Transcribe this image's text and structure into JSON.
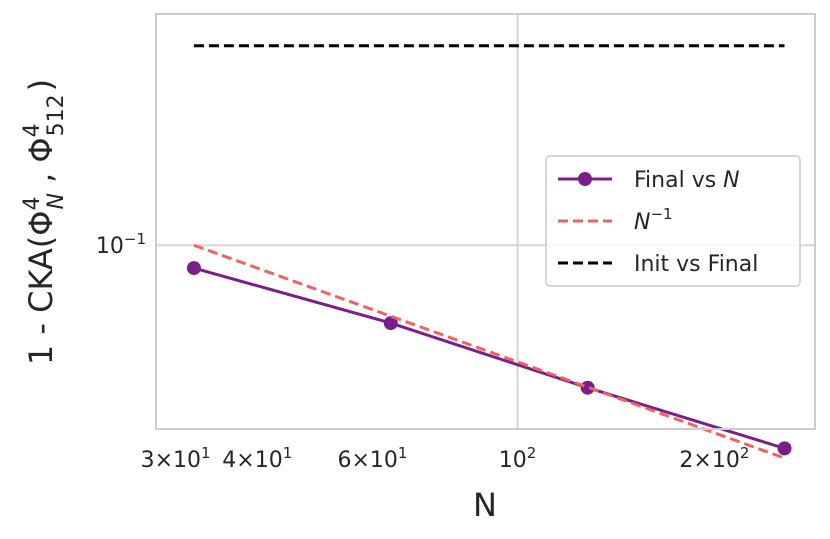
{
  "chart_data": {
    "type": "line",
    "xscale": "log",
    "yscale": "log",
    "xlabel": "N",
    "ylabel": "1 - CKA(Φ^4_N , Φ^4_512)",
    "ylabel_parts": {
      "prefix": "1 - CKA(Φ",
      "sup1": "4",
      "sub1": "N",
      "mid": " , Φ",
      "sup2": "4",
      "sub2": "512",
      "suffix": ")"
    },
    "xlim": [
      28,
      285
    ],
    "ylim": [
      0.0468,
      0.26
    ],
    "x_ticks": [
      {
        "value": 30,
        "base": "3×10",
        "exp": "1"
      },
      {
        "value": 40,
        "base": "4×10",
        "exp": "1"
      },
      {
        "value": 60,
        "base": "6×10",
        "exp": "1"
      },
      {
        "value": 100,
        "base": "10",
        "exp": "2"
      },
      {
        "value": 200,
        "base": "2×10",
        "exp": "2"
      }
    ],
    "y_ticks": [
      {
        "value": 0.1,
        "base": "10",
        "exp": "−1"
      }
    ],
    "grid": true,
    "legend_position": "center-right",
    "series": [
      {
        "name": "Final vs N",
        "label_prefix": "Final vs ",
        "label_italic": "N",
        "style": "solid-marker",
        "color": "#7b1e8a",
        "x": [
          32,
          64,
          128,
          256
        ],
        "y": [
          0.091,
          0.0725,
          0.0555,
          0.0432
        ]
      },
      {
        "name": "N^-1",
        "label_italic": "N",
        "label_sup": "−1",
        "style": "dashed",
        "color": "#ee6361",
        "x": [
          32,
          256
        ],
        "y": [
          0.1,
          0.0415
        ]
      },
      {
        "name": "Init vs Final",
        "label_prefix": "Init vs Final",
        "style": "dashed",
        "color": "#000000",
        "x": [
          32,
          256
        ],
        "y": [
          0.228,
          0.228
        ]
      }
    ]
  }
}
